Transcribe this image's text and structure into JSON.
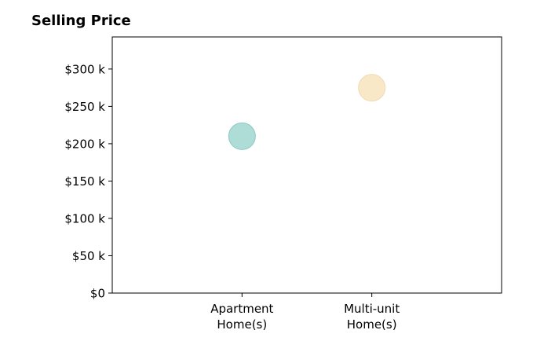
{
  "chart_data": {
    "type": "scatter",
    "title": "Selling Price",
    "categories": [
      "Apartment\nHome(s)",
      "Multi-unit\nHome(s)"
    ],
    "values": [
      210000,
      275000
    ],
    "point_colors": [
      "#aedcd6",
      "#f8e8c8"
    ],
    "point_edge_colors": [
      "#8ccac3",
      "#f0dbb2"
    ],
    "y_ticks": [
      0,
      50000,
      100000,
      150000,
      200000,
      250000,
      300000
    ],
    "y_tick_labels": [
      "$0",
      "$50 k",
      "$100 k",
      "$150 k",
      "$200 k",
      "$250 k",
      "$300 k"
    ],
    "ylim": [
      0,
      343000
    ],
    "xlim": [
      -1,
      2
    ],
    "grid": false,
    "legend": "none",
    "xlabel": "",
    "ylabel": ""
  }
}
